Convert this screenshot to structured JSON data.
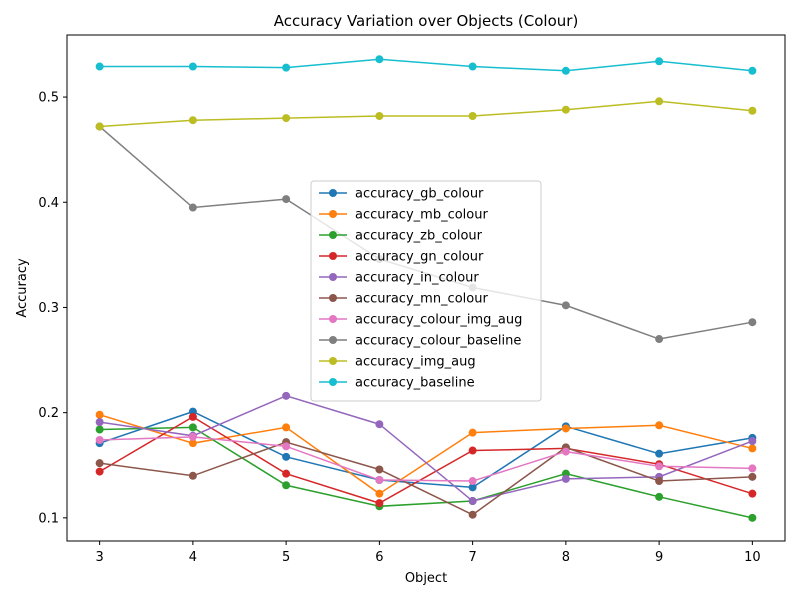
{
  "chart_data": {
    "type": "line",
    "title": "Accuracy Variation over Objects (Colour)",
    "xlabel": "Object",
    "ylabel": "Accuracy",
    "x": [
      3,
      4,
      5,
      6,
      7,
      8,
      9,
      10
    ],
    "xlim": [
      2.65,
      10.35
    ],
    "ylim": [
      0.078,
      0.559
    ],
    "xticks": [
      3,
      4,
      5,
      6,
      7,
      8,
      9,
      10
    ],
    "yticks": [
      0.1,
      0.2,
      0.3,
      0.4,
      0.5
    ],
    "grid": false,
    "legend_position": "center",
    "series": [
      {
        "name": "accuracy_gb_colour",
        "color": "#1f77b4",
        "values": [
          0.171,
          0.201,
          0.158,
          0.136,
          0.129,
          0.187,
          0.161,
          0.176
        ]
      },
      {
        "name": "accuracy_mb_colour",
        "color": "#ff7f0e",
        "values": [
          0.198,
          0.171,
          0.186,
          0.123,
          0.181,
          0.185,
          0.188,
          0.166
        ]
      },
      {
        "name": "accuracy_zb_colour",
        "color": "#2ca02c",
        "values": [
          0.184,
          0.186,
          0.131,
          0.111,
          0.116,
          0.142,
          0.12,
          0.1
        ]
      },
      {
        "name": "accuracy_gn_colour",
        "color": "#d62728",
        "values": [
          0.144,
          0.196,
          0.142,
          0.114,
          0.164,
          0.166,
          0.151,
          0.123
        ]
      },
      {
        "name": "accuracy_in_colour",
        "color": "#9467bd",
        "values": [
          0.191,
          0.178,
          0.216,
          0.189,
          0.116,
          0.137,
          0.139,
          0.173
        ]
      },
      {
        "name": "accuracy_mn_colour",
        "color": "#8c564b",
        "values": [
          0.152,
          0.14,
          0.172,
          0.146,
          0.103,
          0.167,
          0.135,
          0.139
        ]
      },
      {
        "name": "accuracy_colour_img_aug",
        "color": "#e377c2",
        "values": [
          0.174,
          0.177,
          0.168,
          0.136,
          0.135,
          0.163,
          0.149,
          0.147
        ]
      },
      {
        "name": "accuracy_colour_baseline",
        "color": "#7f7f7f",
        "values": [
          0.472,
          0.395,
          0.403,
          0.346,
          0.319,
          0.302,
          0.27,
          0.286
        ]
      },
      {
        "name": "accuracy_img_aug",
        "color": "#bcbd22",
        "values": [
          0.472,
          0.478,
          0.48,
          0.482,
          0.482,
          0.488,
          0.496,
          0.487
        ]
      },
      {
        "name": "accuracy_baseline",
        "color": "#17becf",
        "values": [
          0.529,
          0.529,
          0.528,
          0.536,
          0.529,
          0.525,
          0.534,
          0.525
        ]
      }
    ]
  }
}
